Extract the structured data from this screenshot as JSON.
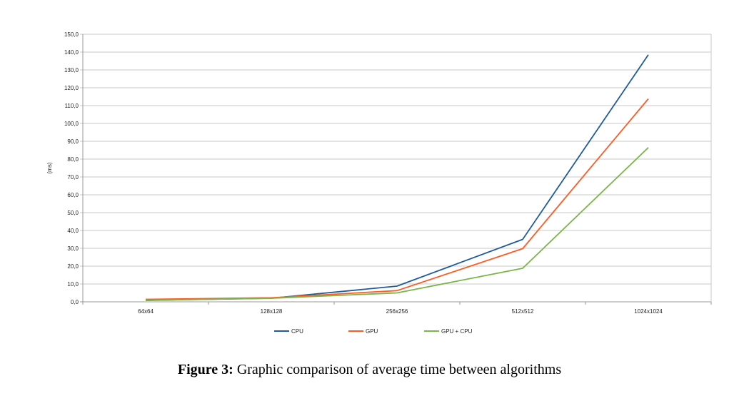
{
  "chart_data": {
    "type": "line",
    "categories": [
      "64x64",
      "128x128",
      "256x256",
      "512x512",
      "1024x1024"
    ],
    "series": [
      {
        "name": "CPU",
        "values": [
          0.8,
          2.0,
          8.8,
          35.0,
          138.5
        ],
        "color": "#1F5C99"
      },
      {
        "name": "GPU",
        "values": [
          1.4,
          2.3,
          6.3,
          29.8,
          113.8
        ],
        "color": "#FF5A24"
      },
      {
        "name": "GPU + CPU",
        "values": [
          0.9,
          2.0,
          5.0,
          18.8,
          86.5
        ],
        "color": "#7AB648"
      }
    ],
    "ylabel": "(ms)",
    "ylim": [
      0,
      150
    ],
    "ytick_step": 10,
    "grid": true,
    "legend_position": "bottom"
  },
  "caption": {
    "label": "Figure 3:",
    "text": "Graphic comparison of average time between algorithms"
  }
}
